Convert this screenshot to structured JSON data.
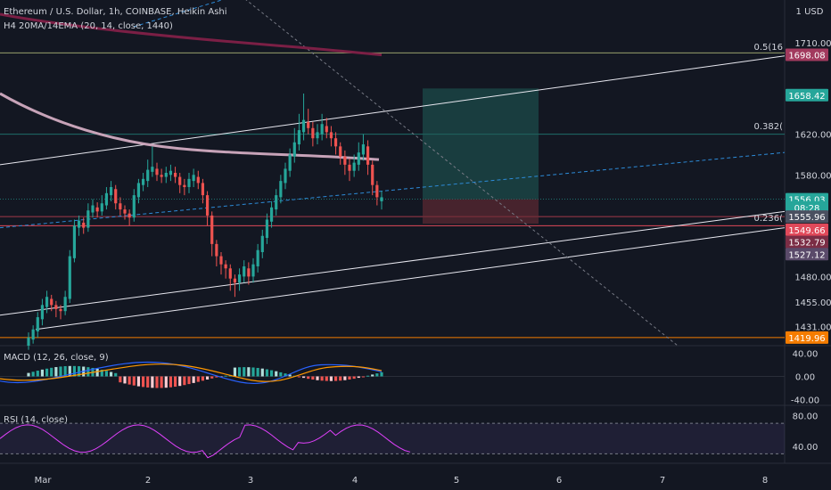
{
  "header": {
    "title": "Ethereum / U.S. Dollar, 1h, COINBASE, Heikin Ashi",
    "indicator": "H4 20MA/14EMA (20, 14, close, 1440)"
  },
  "scale": {
    "currency": "1 USD"
  },
  "chart_data": {
    "type": "candlestick",
    "y_range": [
      1412,
      1752
    ],
    "y_ticks": [
      "1710.00",
      "1620.00",
      "1580.00",
      "1480.00",
      "1455.00",
      "1431.00"
    ],
    "x_ticks": [
      "Mar",
      "2",
      "3",
      "4",
      "5",
      "6",
      "7",
      "8"
    ],
    "price_tags": [
      {
        "label": "1698.08",
        "value": 1698.08,
        "color": "#a23a5e"
      },
      {
        "label": "1658.42",
        "value": 1658.42,
        "color": "#26a69a"
      },
      {
        "label": "1556.03",
        "value": 1556.03,
        "color": "#26a69a"
      },
      {
        "label": "08:28",
        "value": 1548,
        "color": "#26a69a"
      },
      {
        "label": "1555.96",
        "value": 1539,
        "color": "#4a5060"
      },
      {
        "label": "1549.66",
        "value": 1526,
        "color": "#e0495a"
      },
      {
        "label": "1532.79",
        "value": 1514,
        "color": "#7b2d45"
      },
      {
        "label": "1527.12",
        "value": 1502,
        "color": "#5a4a6a"
      },
      {
        "label": "1419.96",
        "value": 1419.96,
        "color": "#f57c00"
      }
    ],
    "fib_labels": [
      {
        "label": "0.5(16",
        "value": 1702
      },
      {
        "label": "0.382(",
        "value": 1624
      },
      {
        "label": "0.236(",
        "value": 1534
      }
    ],
    "candles": [
      [
        1412,
        1420,
        1408,
        1425,
        "up"
      ],
      [
        1418,
        1428,
        1414,
        1432,
        "up"
      ],
      [
        1426,
        1440,
        1420,
        1445,
        "up"
      ],
      [
        1438,
        1452,
        1432,
        1458,
        "up"
      ],
      [
        1450,
        1460,
        1444,
        1466,
        "up"
      ],
      [
        1458,
        1452,
        1446,
        1462,
        "down"
      ],
      [
        1452,
        1448,
        1440,
        1456,
        "down"
      ],
      [
        1448,
        1446,
        1438,
        1452,
        "down"
      ],
      [
        1446,
        1460,
        1442,
        1466,
        "up"
      ],
      [
        1458,
        1500,
        1454,
        1506,
        "up"
      ],
      [
        1498,
        1530,
        1494,
        1536,
        "up"
      ],
      [
        1528,
        1535,
        1520,
        1540,
        "up"
      ],
      [
        1533,
        1528,
        1522,
        1538,
        "down"
      ],
      [
        1528,
        1545,
        1524,
        1552,
        "up"
      ],
      [
        1543,
        1550,
        1538,
        1556,
        "up"
      ],
      [
        1548,
        1544,
        1538,
        1553,
        "down"
      ],
      [
        1544,
        1552,
        1540,
        1560,
        "up"
      ],
      [
        1550,
        1562,
        1546,
        1568,
        "up"
      ],
      [
        1560,
        1568,
        1554,
        1574,
        "up"
      ],
      [
        1566,
        1552,
        1546,
        1570,
        "down"
      ],
      [
        1552,
        1546,
        1540,
        1558,
        "down"
      ],
      [
        1546,
        1542,
        1536,
        1550,
        "down"
      ],
      [
        1542,
        1538,
        1530,
        1546,
        "down"
      ],
      [
        1538,
        1560,
        1534,
        1566,
        "up"
      ],
      [
        1558,
        1572,
        1552,
        1576,
        "up"
      ],
      [
        1570,
        1576,
        1564,
        1582,
        "up"
      ],
      [
        1574,
        1585,
        1568,
        1595,
        "up"
      ],
      [
        1583,
        1588,
        1578,
        1608,
        "up"
      ],
      [
        1586,
        1580,
        1574,
        1592,
        "down"
      ],
      [
        1580,
        1578,
        1572,
        1586,
        "down"
      ],
      [
        1578,
        1582,
        1572,
        1588,
        "up"
      ],
      [
        1580,
        1584,
        1574,
        1590,
        "up"
      ],
      [
        1582,
        1578,
        1572,
        1588,
        "down"
      ],
      [
        1578,
        1570,
        1562,
        1582,
        "down"
      ],
      [
        1570,
        1568,
        1560,
        1576,
        "down"
      ],
      [
        1568,
        1576,
        1562,
        1582,
        "up"
      ],
      [
        1574,
        1580,
        1568,
        1586,
        "up"
      ],
      [
        1578,
        1572,
        1566,
        1584,
        "down"
      ],
      [
        1572,
        1560,
        1552,
        1576,
        "down"
      ],
      [
        1560,
        1540,
        1530,
        1564,
        "down"
      ],
      [
        1540,
        1512,
        1500,
        1544,
        "down"
      ],
      [
        1512,
        1500,
        1490,
        1516,
        "down"
      ],
      [
        1500,
        1492,
        1482,
        1504,
        "down"
      ],
      [
        1492,
        1488,
        1478,
        1496,
        "down"
      ],
      [
        1488,
        1478,
        1466,
        1492,
        "down"
      ],
      [
        1478,
        1474,
        1460,
        1482,
        "down"
      ],
      [
        1474,
        1482,
        1466,
        1488,
        "up"
      ],
      [
        1480,
        1490,
        1474,
        1496,
        "up"
      ],
      [
        1488,
        1480,
        1472,
        1494,
        "down"
      ],
      [
        1480,
        1492,
        1474,
        1498,
        "up"
      ],
      [
        1490,
        1506,
        1484,
        1512,
        "up"
      ],
      [
        1504,
        1520,
        1498,
        1526,
        "up"
      ],
      [
        1518,
        1536,
        1512,
        1542,
        "up"
      ],
      [
        1534,
        1548,
        1528,
        1554,
        "up"
      ],
      [
        1546,
        1560,
        1540,
        1566,
        "up"
      ],
      [
        1558,
        1574,
        1552,
        1580,
        "up"
      ],
      [
        1572,
        1586,
        1566,
        1592,
        "up"
      ],
      [
        1584,
        1600,
        1578,
        1606,
        "up"
      ],
      [
        1598,
        1612,
        1592,
        1626,
        "up"
      ],
      [
        1610,
        1624,
        1604,
        1640,
        "up"
      ],
      [
        1622,
        1634,
        1614,
        1660,
        "up"
      ],
      [
        1632,
        1626,
        1620,
        1645,
        "down"
      ],
      [
        1626,
        1616,
        1608,
        1632,
        "down"
      ],
      [
        1616,
        1622,
        1610,
        1630,
        "up"
      ],
      [
        1620,
        1630,
        1614,
        1640,
        "up"
      ],
      [
        1628,
        1622,
        1616,
        1636,
        "down"
      ],
      [
        1622,
        1616,
        1608,
        1628,
        "down"
      ],
      [
        1616,
        1608,
        1600,
        1622,
        "down"
      ],
      [
        1608,
        1598,
        1590,
        1612,
        "down"
      ],
      [
        1598,
        1590,
        1580,
        1604,
        "down"
      ],
      [
        1590,
        1584,
        1574,
        1596,
        "down"
      ],
      [
        1584,
        1592,
        1578,
        1600,
        "up"
      ],
      [
        1590,
        1602,
        1584,
        1612,
        "up"
      ],
      [
        1600,
        1610,
        1594,
        1620,
        "up"
      ],
      [
        1608,
        1590,
        1580,
        1614,
        "down"
      ],
      [
        1590,
        1570,
        1560,
        1594,
        "down"
      ],
      [
        1570,
        1558,
        1550,
        1574,
        "down"
      ],
      [
        1558,
        1554,
        1546,
        1564,
        "up"
      ]
    ],
    "macd": {
      "label": "MACD (12, 26, close, 9)",
      "y_ticks": [
        "40.00",
        "0.00",
        "-40.00"
      ],
      "range": [
        -50,
        50
      ]
    },
    "rsi": {
      "label": "RSI (14, close)",
      "y_ticks": [
        "80.00",
        "40.00"
      ],
      "range": [
        20,
        90
      ]
    }
  }
}
